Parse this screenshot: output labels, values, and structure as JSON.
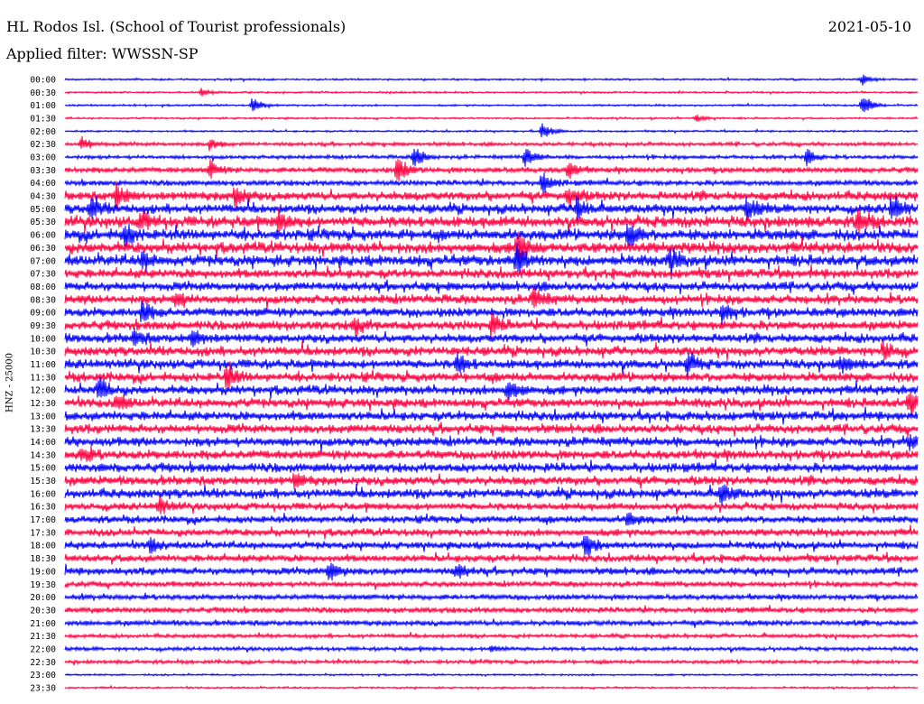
{
  "header": {
    "station": "HL Rodos Isl. (School of Tourist professionals)",
    "date": "2021-05-10",
    "filter": "Applied filter: WWSSN-SP"
  },
  "channel_label": "HNZ - 25000",
  "colors": {
    "even_trace": "#0000ff",
    "odd_trace": "#ff0040"
  },
  "chart_data": {
    "type": "line",
    "ylabel": "HNZ - 25000",
    "time_labels": [
      "00:00",
      "00:30",
      "01:00",
      "01:30",
      "02:00",
      "02:30",
      "03:00",
      "03:30",
      "04:00",
      "04:30",
      "05:00",
      "05:30",
      "06:00",
      "06:30",
      "07:00",
      "07:30",
      "08:00",
      "08:30",
      "09:00",
      "09:30",
      "10:00",
      "10:30",
      "11:00",
      "11:30",
      "12:00",
      "12:30",
      "13:00",
      "13:30",
      "14:00",
      "14:30",
      "15:00",
      "15:30",
      "16:00",
      "16:30",
      "17:00",
      "17:30",
      "18:00",
      "18:30",
      "19:00",
      "19:30",
      "20:00",
      "20:30",
      "21:00",
      "21:30",
      "22:00",
      "22:30",
      "23:00",
      "23:30"
    ],
    "trace_noise_amplitude": [
      1,
      1,
      1,
      1,
      1,
      2,
      2,
      3,
      3,
      5,
      5,
      6,
      6,
      6,
      6,
      5,
      5,
      5,
      5,
      5,
      5,
      5,
      5,
      5,
      5,
      5,
      5,
      5,
      5,
      5,
      5,
      5,
      5,
      4,
      4,
      4,
      4,
      4,
      4,
      3,
      3,
      3,
      3,
      2,
      2,
      2,
      1,
      1
    ],
    "events": [
      {
        "row": 0,
        "x": 0.935,
        "amp": 6
      },
      {
        "row": 1,
        "x": 0.16,
        "amp": 4
      },
      {
        "row": 2,
        "x": 0.22,
        "amp": 9
      },
      {
        "row": 2,
        "x": 0.935,
        "amp": 14
      },
      {
        "row": 3,
        "x": 0.74,
        "amp": 5
      },
      {
        "row": 4,
        "x": 0.56,
        "amp": 10
      },
      {
        "row": 5,
        "x": 0.02,
        "amp": 8
      },
      {
        "row": 5,
        "x": 0.17,
        "amp": 7
      },
      {
        "row": 6,
        "x": 0.41,
        "amp": 14
      },
      {
        "row": 6,
        "x": 0.54,
        "amp": 12
      },
      {
        "row": 6,
        "x": 0.87,
        "amp": 10
      },
      {
        "row": 7,
        "x": 0.17,
        "amp": 10
      },
      {
        "row": 7,
        "x": 0.39,
        "amp": 16
      },
      {
        "row": 7,
        "x": 0.59,
        "amp": 10
      },
      {
        "row": 8,
        "x": 0.56,
        "amp": 12
      },
      {
        "row": 9,
        "x": 0.06,
        "amp": 14
      },
      {
        "row": 9,
        "x": 0.2,
        "amp": 12
      },
      {
        "row": 9,
        "x": 0.59,
        "amp": 12
      },
      {
        "row": 10,
        "x": 0.03,
        "amp": 12
      },
      {
        "row": 10,
        "x": 0.6,
        "amp": 14
      },
      {
        "row": 10,
        "x": 0.8,
        "amp": 14
      },
      {
        "row": 10,
        "x": 0.97,
        "amp": 16
      },
      {
        "row": 11,
        "x": 0.09,
        "amp": 10
      },
      {
        "row": 11,
        "x": 0.25,
        "amp": 12
      },
      {
        "row": 11,
        "x": 0.93,
        "amp": 14
      },
      {
        "row": 12,
        "x": 0.07,
        "amp": 12
      },
      {
        "row": 12,
        "x": 0.66,
        "amp": 16
      },
      {
        "row": 13,
        "x": 0.53,
        "amp": 18
      },
      {
        "row": 14,
        "x": 0.09,
        "amp": 10
      },
      {
        "row": 14,
        "x": 0.53,
        "amp": 18
      },
      {
        "row": 14,
        "x": 0.71,
        "amp": 12
      },
      {
        "row": 17,
        "x": 0.13,
        "amp": 10
      },
      {
        "row": 17,
        "x": 0.55,
        "amp": 12
      },
      {
        "row": 18,
        "x": 0.09,
        "amp": 12
      },
      {
        "row": 18,
        "x": 0.77,
        "amp": 10
      },
      {
        "row": 19,
        "x": 0.34,
        "amp": 10
      },
      {
        "row": 19,
        "x": 0.5,
        "amp": 12
      },
      {
        "row": 20,
        "x": 0.08,
        "amp": 10
      },
      {
        "row": 20,
        "x": 0.15,
        "amp": 10
      },
      {
        "row": 21,
        "x": 0.96,
        "amp": 12
      },
      {
        "row": 22,
        "x": 0.46,
        "amp": 12
      },
      {
        "row": 22,
        "x": 0.73,
        "amp": 12
      },
      {
        "row": 22,
        "x": 0.91,
        "amp": 10
      },
      {
        "row": 23,
        "x": 0.19,
        "amp": 14
      },
      {
        "row": 24,
        "x": 0.04,
        "amp": 14
      },
      {
        "row": 24,
        "x": 0.52,
        "amp": 14
      },
      {
        "row": 25,
        "x": 0.06,
        "amp": 10
      },
      {
        "row": 25,
        "x": 0.99,
        "amp": 14
      },
      {
        "row": 28,
        "x": 0.99,
        "amp": 8
      },
      {
        "row": 29,
        "x": 0.02,
        "amp": 10
      },
      {
        "row": 31,
        "x": 0.27,
        "amp": 8
      },
      {
        "row": 32,
        "x": 0.77,
        "amp": 12
      },
      {
        "row": 33,
        "x": 0.11,
        "amp": 10
      },
      {
        "row": 34,
        "x": 0.66,
        "amp": 10
      },
      {
        "row": 36,
        "x": 0.1,
        "amp": 8
      },
      {
        "row": 36,
        "x": 0.61,
        "amp": 14
      },
      {
        "row": 38,
        "x": 0.31,
        "amp": 12
      },
      {
        "row": 38,
        "x": 0.46,
        "amp": 8
      },
      {
        "row": 44,
        "x": 0.5,
        "amp": 4
      }
    ]
  }
}
